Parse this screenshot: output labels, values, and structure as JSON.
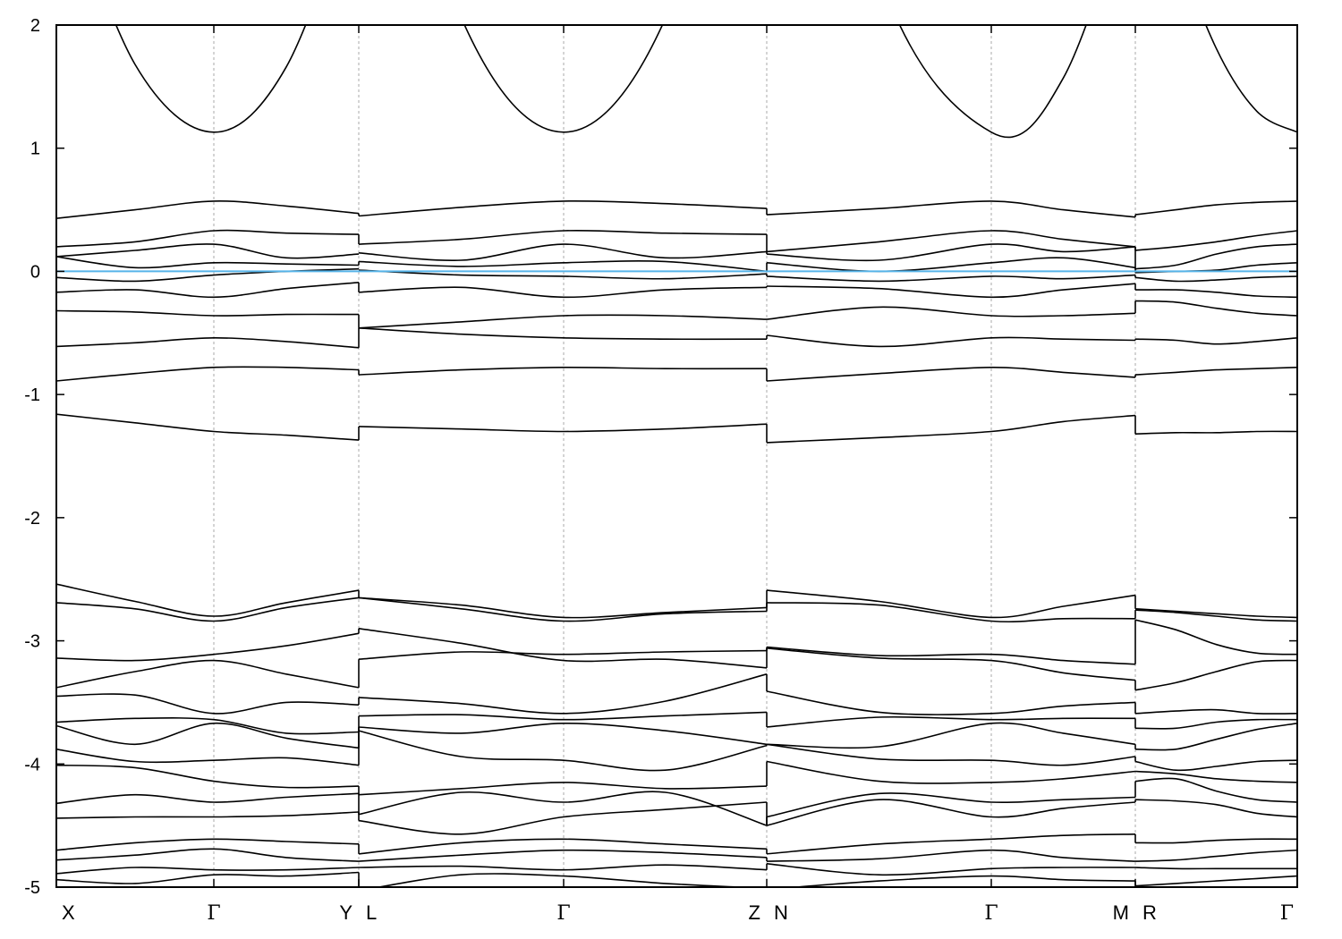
{
  "chart_data": {
    "type": "line",
    "title": "",
    "xlabel": "",
    "ylabel": "",
    "ylim": [
      -5,
      2
    ],
    "yticks": [
      -5,
      -4,
      -3,
      -2,
      -1,
      0,
      1,
      2
    ],
    "ytick_labels": [
      "-5",
      "-4",
      "-3",
      "-2",
      "-1",
      "0",
      "1",
      "2"
    ],
    "grid": "dashed vertical lines at high-symmetry points",
    "fermi_level": 0,
    "colors": {
      "bands": "#000000",
      "fermi_line": "#56b4e9",
      "grid": "#aaaaaa"
    },
    "kpoints": [
      {
        "label": "X",
        "k": 0
      },
      {
        "label": "Γ",
        "k": 1.76
      },
      {
        "label": "Y",
        "k": 3.38
      },
      {
        "label": "L",
        "k": 3.38
      },
      {
        "label": "Γ",
        "k": 5.67
      },
      {
        "label": "Z",
        "k": 7.94
      },
      {
        "label": "N",
        "k": 7.94
      },
      {
        "label": "Γ",
        "k": 10.45
      },
      {
        "label": "M",
        "k": 12.06
      },
      {
        "label": "R",
        "k": 12.06
      },
      {
        "label": "Γ",
        "k": 13.87
      }
    ],
    "xlim": [
      0,
      13.87
    ],
    "segments": [
      {
        "path": "X-Γ-Y",
        "k": [
          0,
          1.76,
          3.38
        ],
        "bands": [
          [
            3.3,
            1.68,
            1.13,
            1.66,
            3.2
          ],
          [
            0.43,
            0.5,
            0.57,
            0.53,
            0.47
          ],
          [
            0.2,
            0.24,
            0.33,
            0.31,
            0.3
          ],
          [
            0.12,
            0.17,
            0.22,
            0.11,
            0.14
          ],
          [
            0.12,
            0.03,
            0.07,
            0.06,
            0.05
          ],
          [
            -0.05,
            -0.08,
            -0.03,
            0.0,
            0.02
          ],
          [
            -0.17,
            -0.15,
            -0.21,
            -0.14,
            -0.09
          ],
          [
            -0.32,
            -0.33,
            -0.36,
            -0.35,
            -0.35
          ],
          [
            -0.61,
            -0.58,
            -0.54,
            -0.57,
            -0.62
          ],
          [
            -0.89,
            -0.83,
            -0.78,
            -0.78,
            -0.8
          ],
          [
            -1.16,
            -1.23,
            -1.3,
            -1.33,
            -1.37
          ],
          [
            -2.54,
            -2.68,
            -2.8,
            -2.69,
            -2.59
          ],
          [
            -2.69,
            -2.74,
            -2.84,
            -2.73,
            -2.65
          ],
          [
            -3.14,
            -3.16,
            -3.11,
            -3.04,
            -2.94
          ],
          [
            -3.38,
            -3.25,
            -3.16,
            -3.27,
            -3.38
          ],
          [
            -3.45,
            -3.44,
            -3.59,
            -3.5,
            -3.52
          ],
          [
            -3.66,
            -3.63,
            -3.64,
            -3.75,
            -3.74
          ],
          [
            -3.69,
            -3.84,
            -3.67,
            -3.79,
            -3.87
          ],
          [
            -3.88,
            -3.98,
            -3.97,
            -3.95,
            -4.01
          ],
          [
            -4.01,
            -4.03,
            -4.14,
            -4.19,
            -4.18
          ],
          [
            -4.32,
            -4.25,
            -4.31,
            -4.27,
            -4.24
          ],
          [
            -4.44,
            -4.43,
            -4.43,
            -4.42,
            -4.39
          ],
          [
            -4.7,
            -4.64,
            -4.61,
            -4.63,
            -4.65
          ],
          [
            -4.78,
            -4.74,
            -4.69,
            -4.76,
            -4.79
          ],
          [
            -4.89,
            -4.84,
            -4.86,
            -4.86,
            -4.84
          ],
          [
            -4.94,
            -4.97,
            -4.9,
            -4.91,
            -4.88
          ]
        ]
      },
      {
        "path": "L-Γ-Z",
        "k": [
          3.38,
          5.67,
          7.94
        ],
        "bands": [
          [
            4.9,
            2.06,
            1.13,
            2.05,
            4.8
          ],
          [
            0.45,
            0.52,
            0.57,
            0.55,
            0.51
          ],
          [
            0.22,
            0.26,
            0.33,
            0.31,
            0.3
          ],
          [
            0.15,
            0.09,
            0.22,
            0.11,
            0.16
          ],
          [
            0.08,
            0.04,
            0.07,
            0.08,
            0.0
          ],
          [
            0.01,
            -0.03,
            -0.04,
            -0.06,
            -0.02
          ],
          [
            -0.17,
            -0.13,
            -0.21,
            -0.15,
            -0.13
          ],
          [
            -0.46,
            -0.41,
            -0.36,
            -0.36,
            -0.39
          ],
          [
            -0.46,
            -0.51,
            -0.54,
            -0.55,
            -0.55
          ],
          [
            -0.84,
            -0.8,
            -0.78,
            -0.79,
            -0.79
          ],
          [
            -1.26,
            -1.28,
            -1.3,
            -1.28,
            -1.24
          ],
          [
            -2.65,
            -2.71,
            -2.81,
            -2.77,
            -2.73
          ],
          [
            -2.65,
            -2.74,
            -2.84,
            -2.78,
            -2.76
          ],
          [
            -2.9,
            -3.02,
            -3.16,
            -3.15,
            -3.22
          ],
          [
            -3.15,
            -3.09,
            -3.11,
            -3.09,
            -3.08
          ],
          [
            -3.46,
            -3.51,
            -3.59,
            -3.49,
            -3.27
          ],
          [
            -3.61,
            -3.6,
            -3.64,
            -3.61,
            -3.58
          ],
          [
            -3.7,
            -3.75,
            -3.67,
            -3.73,
            -3.84
          ],
          [
            -3.73,
            -3.94,
            -3.97,
            -4.05,
            -3.85
          ],
          [
            -4.25,
            -4.2,
            -4.15,
            -4.2,
            -4.18
          ],
          [
            -4.41,
            -4.23,
            -4.31,
            -4.23,
            -4.5
          ],
          [
            -4.46,
            -4.57,
            -4.43,
            -4.37,
            -4.31
          ],
          [
            -4.73,
            -4.64,
            -4.61,
            -4.65,
            -4.69
          ],
          [
            -4.79,
            -4.74,
            -4.7,
            -4.72,
            -4.76
          ],
          [
            -4.84,
            -4.83,
            -4.86,
            -4.82,
            -4.86
          ],
          [
            -5.03,
            -4.9,
            -4.91,
            -4.97,
            -5.01
          ]
        ]
      },
      {
        "path": "N-Γ-M",
        "k": [
          7.94,
          10.45,
          12.06
        ],
        "bands": [
          [
            6.3,
            2.41,
            1.13,
            1.57,
            3.2
          ],
          [
            0.46,
            0.51,
            0.57,
            0.5,
            0.44
          ],
          [
            0.16,
            0.24,
            0.33,
            0.26,
            0.2
          ],
          [
            0.14,
            0.09,
            0.22,
            0.16,
            0.2
          ],
          [
            0.07,
            0.0,
            0.07,
            0.11,
            0.03
          ],
          [
            -0.04,
            -0.08,
            -0.04,
            -0.06,
            -0.03
          ],
          [
            -0.12,
            -0.14,
            -0.21,
            -0.15,
            -0.1
          ],
          [
            -0.39,
            -0.29,
            -0.36,
            -0.36,
            -0.34
          ],
          [
            -0.52,
            -0.61,
            -0.54,
            -0.55,
            -0.56
          ],
          [
            -0.89,
            -0.83,
            -0.78,
            -0.82,
            -0.86
          ],
          [
            -1.39,
            -1.35,
            -1.3,
            -1.22,
            -1.17
          ],
          [
            -2.59,
            -2.68,
            -2.81,
            -2.72,
            -2.63
          ],
          [
            -2.69,
            -2.71,
            -2.84,
            -2.82,
            -2.82
          ],
          [
            -3.05,
            -3.12,
            -3.11,
            -3.16,
            -3.19
          ],
          [
            -3.06,
            -3.14,
            -3.16,
            -3.26,
            -3.32
          ],
          [
            -3.41,
            -3.58,
            -3.59,
            -3.53,
            -3.5
          ],
          [
            -3.7,
            -3.62,
            -3.64,
            -3.63,
            -3.63
          ],
          [
            -3.84,
            -3.86,
            -3.67,
            -3.75,
            -3.84
          ],
          [
            -3.84,
            -3.96,
            -3.97,
            -4.01,
            -3.94
          ],
          [
            -3.98,
            -4.14,
            -4.15,
            -4.12,
            -4.06
          ],
          [
            -4.43,
            -4.24,
            -4.31,
            -4.29,
            -4.27
          ],
          [
            -4.5,
            -4.29,
            -4.43,
            -4.36,
            -4.31
          ],
          [
            -4.73,
            -4.65,
            -4.61,
            -4.58,
            -4.57
          ],
          [
            -4.79,
            -4.77,
            -4.7,
            -4.76,
            -4.79
          ],
          [
            -4.81,
            -4.9,
            -4.85,
            -4.84,
            -4.84
          ],
          [
            -5.02,
            -4.95,
            -4.91,
            -4.94,
            -4.95
          ]
        ]
      },
      {
        "path": "R-Γ",
        "k": [
          12.06,
          13.87
        ],
        "bands": [
          [
            3.87,
            2.68,
            1.81,
            1.3,
            1.13
          ],
          [
            0.46,
            0.5,
            0.54,
            0.56,
            0.57
          ],
          [
            0.17,
            0.2,
            0.24,
            0.29,
            0.33
          ],
          [
            0.02,
            0.05,
            0.14,
            0.2,
            0.22
          ],
          [
            -0.01,
            0.0,
            0.01,
            0.05,
            0.07
          ],
          [
            -0.05,
            -0.08,
            -0.07,
            -0.05,
            -0.04
          ],
          [
            -0.15,
            -0.15,
            -0.17,
            -0.2,
            -0.21
          ],
          [
            -0.24,
            -0.25,
            -0.3,
            -0.34,
            -0.36
          ],
          [
            -0.55,
            -0.56,
            -0.59,
            -0.57,
            -0.54
          ],
          [
            -0.84,
            -0.82,
            -0.8,
            -0.79,
            -0.78
          ],
          [
            -1.32,
            -1.31,
            -1.31,
            -1.3,
            -1.3
          ],
          [
            -2.74,
            -2.76,
            -2.78,
            -2.8,
            -2.81
          ],
          [
            -2.75,
            -2.77,
            -2.8,
            -2.83,
            -2.84
          ],
          [
            -2.83,
            -2.91,
            -3.03,
            -3.1,
            -3.11
          ],
          [
            -3.4,
            -3.34,
            -3.25,
            -3.17,
            -3.16
          ],
          [
            -3.59,
            -3.57,
            -3.56,
            -3.59,
            -3.59
          ],
          [
            -3.71,
            -3.71,
            -3.66,
            -3.64,
            -3.64
          ],
          [
            -3.88,
            -3.88,
            -3.8,
            -3.72,
            -3.67
          ],
          [
            -3.98,
            -4.05,
            -4.02,
            -3.98,
            -3.97
          ],
          [
            -4.06,
            -4.08,
            -4.12,
            -4.14,
            -4.15
          ],
          [
            -4.14,
            -4.12,
            -4.22,
            -4.29,
            -4.31
          ],
          [
            -4.29,
            -4.3,
            -4.33,
            -4.4,
            -4.43
          ],
          [
            -4.64,
            -4.64,
            -4.62,
            -4.61,
            -4.61
          ],
          [
            -4.79,
            -4.78,
            -4.75,
            -4.72,
            -4.7
          ],
          [
            -4.84,
            -4.85,
            -4.85,
            -4.85,
            -4.85
          ],
          [
            -4.99,
            -4.97,
            -4.95,
            -4.93,
            -4.91
          ]
        ]
      }
    ]
  }
}
